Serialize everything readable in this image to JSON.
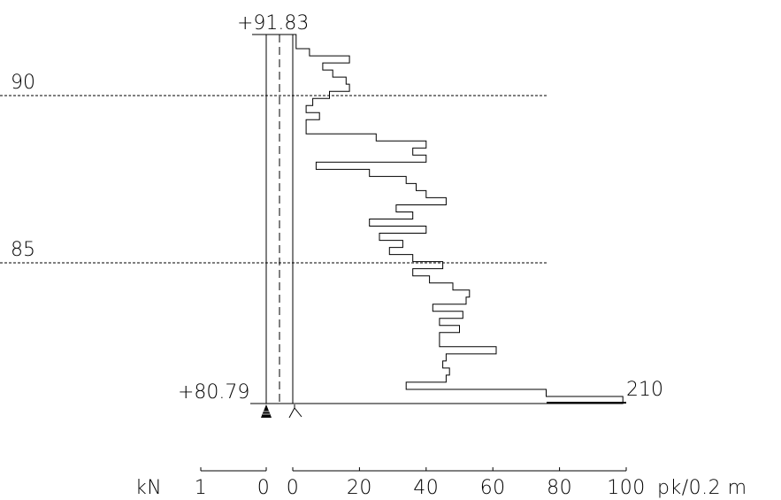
{
  "profile": {
    "top_elevation": "+91.83",
    "bottom_elevation": "+80.79",
    "depth_markers": [
      {
        "label": "90",
        "elevation": 90.0
      },
      {
        "label": "85",
        "elevation": 85.0
      }
    ],
    "end_value_label": "210",
    "end_value": 210
  },
  "scale_bar": {
    "left_unit": "kN",
    "left_tick_labels": [
      "1",
      "0"
    ],
    "right_tick_labels": [
      "0",
      "20",
      "40",
      "60",
      "80",
      "100"
    ],
    "right_unit": "pk/0.2 m"
  },
  "chart_data": {
    "type": "step",
    "xlabel": "pk/0.2 m",
    "xlim": [
      0,
      100
    ],
    "ylim": [
      80.79,
      91.83
    ],
    "pk_per_0_2m": [
      1,
      1,
      5,
      17,
      9,
      12,
      16,
      17,
      11,
      6,
      4,
      8,
      4,
      4,
      25,
      40,
      36,
      40,
      7,
      23,
      34,
      37,
      40,
      46,
      31,
      36,
      23,
      40,
      26,
      33,
      29,
      36,
      45,
      36,
      41,
      48,
      53,
      52,
      42,
      51,
      44,
      50,
      44,
      44,
      61,
      46,
      45,
      47,
      46,
      34,
      76,
      99
    ]
  },
  "colors": {
    "line": "#000000",
    "background": "#ffffff"
  },
  "icons": {
    "bottom_left": "ground-anchor-icon",
    "bottom_right": "pile-tip-icon"
  }
}
